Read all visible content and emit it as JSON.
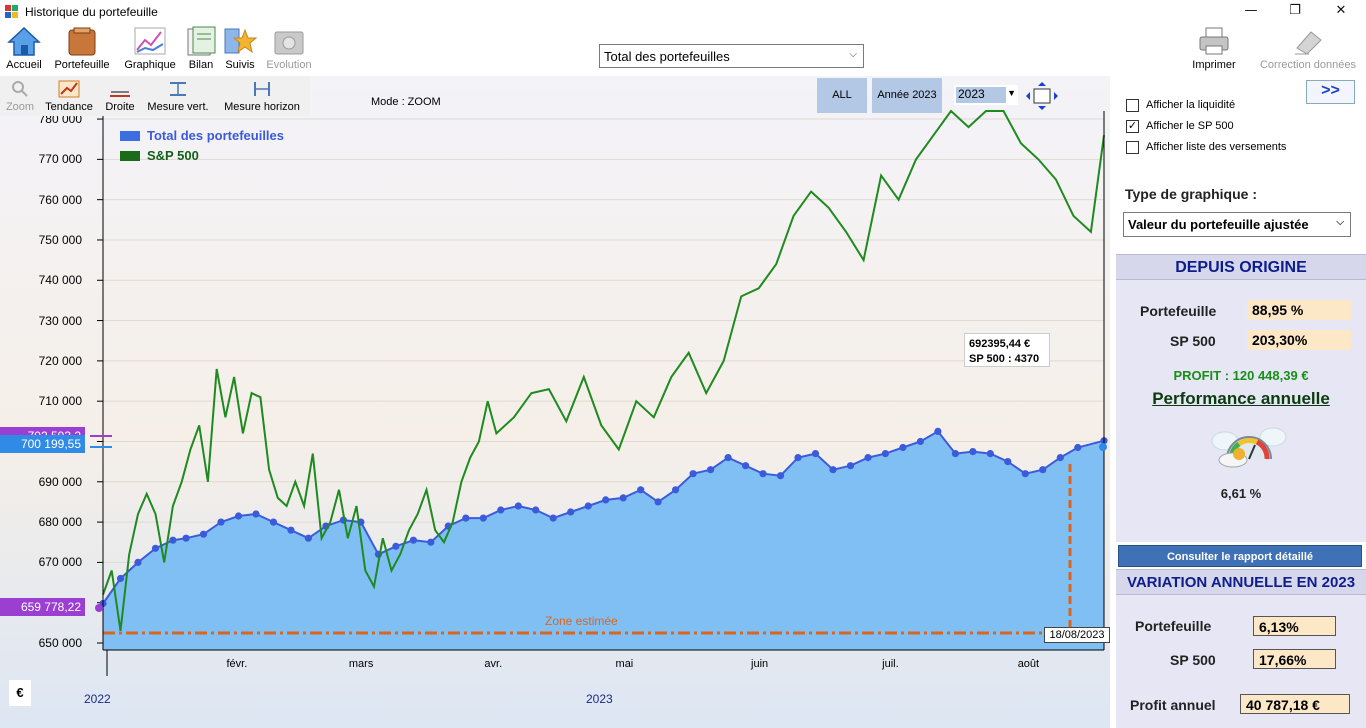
{
  "window": {
    "title": "Historique du portefeuille"
  },
  "toolbar": {
    "accueil": "Accueil",
    "portefeuille": "Portefeuille",
    "graphique": "Graphique",
    "bilan": "Bilan",
    "suivis": "Suivis",
    "evolution": "Evolution",
    "imprimer": "Imprimer",
    "correction": "Correction données",
    "portfolio_select": "Total des portefeuilles"
  },
  "subtoolbar": {
    "zoom": "Zoom",
    "tendance": "Tendance",
    "droite": "Droite",
    "mesure_vert": "Mesure vert.",
    "mesure_horizon": "Mesure horizon"
  },
  "chart_controls": {
    "mode": "Mode : ZOOM",
    "all": "ALL",
    "annee": "Année 2023",
    "year_value": "2023",
    "currency": "€",
    "tooltip_value": "692395,44 €",
    "tooltip_sp": "SP 500 : 4370",
    "zone_estimee": "Zone estimée",
    "date_badge": "18/08/2023",
    "tag_high": "702 593,2",
    "tag_current": "700 199,55",
    "tag_low": "659 778,22"
  },
  "chart_data": {
    "type": "area",
    "x_range": [
      "2023-01-01",
      "2023-08-18"
    ],
    "ylim": [
      650000,
      782000
    ],
    "y_ticks": [
      "650 000",
      "660 000",
      "670 000",
      "680 000",
      "690 000",
      "700 000",
      "710 000",
      "720 000",
      "730 000",
      "740 000",
      "750 000",
      "760 000",
      "770 000",
      "780 000"
    ],
    "x_ticks": [
      "févr.",
      "mars",
      "avr.",
      "mai",
      "juin",
      "juil.",
      "août"
    ],
    "x_year_labels": [
      "2022",
      "2023"
    ],
    "legend_placement": "top-left",
    "series": [
      {
        "name": "Total des portefeuilles",
        "style": "area with markers",
        "x": [
          "2023-01-01",
          "2023-01-05",
          "2023-01-09",
          "2023-01-13",
          "2023-01-17",
          "2023-01-20",
          "2023-01-24",
          "2023-01-28",
          "2023-02-01",
          "2023-02-05",
          "2023-02-09",
          "2023-02-13",
          "2023-02-17",
          "2023-02-21",
          "2023-02-25",
          "2023-03-01",
          "2023-03-05",
          "2023-03-09",
          "2023-03-13",
          "2023-03-17",
          "2023-03-21",
          "2023-03-25",
          "2023-03-29",
          "2023-04-02",
          "2023-04-06",
          "2023-04-10",
          "2023-04-14",
          "2023-04-18",
          "2023-04-22",
          "2023-04-26",
          "2023-04-30",
          "2023-05-04",
          "2023-05-08",
          "2023-05-12",
          "2023-05-16",
          "2023-05-20",
          "2023-05-24",
          "2023-05-28",
          "2023-06-01",
          "2023-06-05",
          "2023-06-09",
          "2023-06-13",
          "2023-06-17",
          "2023-06-21",
          "2023-06-25",
          "2023-06-29",
          "2023-07-03",
          "2023-07-07",
          "2023-07-11",
          "2023-07-15",
          "2023-07-19",
          "2023-07-23",
          "2023-07-27",
          "2023-07-31",
          "2023-08-04",
          "2023-08-08",
          "2023-08-12",
          "2023-08-18"
        ],
        "values": [
          659800,
          666000,
          670000,
          673500,
          675500,
          676000,
          677000,
          680000,
          681500,
          682000,
          680000,
          678000,
          676000,
          679000,
          680500,
          680000,
          672000,
          674000,
          675500,
          675000,
          679000,
          681000,
          681000,
          683000,
          684000,
          683000,
          681000,
          682500,
          684000,
          685500,
          686000,
          688000,
          685000,
          688000,
          692000,
          693000,
          696000,
          694000,
          692000,
          691500,
          696000,
          697000,
          693000,
          694000,
          696000,
          697000,
          698500,
          700000,
          702500,
          697000,
          697500,
          697000,
          695000,
          692000,
          693000,
          696000,
          698500,
          700200
        ]
      },
      {
        "name": "S&P 500",
        "style": "line",
        "x": [
          "2023-01-01",
          "2023-01-03",
          "2023-01-05",
          "2023-01-07",
          "2023-01-09",
          "2023-01-11",
          "2023-01-13",
          "2023-01-15",
          "2023-01-17",
          "2023-01-19",
          "2023-01-21",
          "2023-01-23",
          "2023-01-25",
          "2023-01-27",
          "2023-01-29",
          "2023-01-31",
          "2023-02-02",
          "2023-02-04",
          "2023-02-06",
          "2023-02-08",
          "2023-02-10",
          "2023-02-12",
          "2023-02-14",
          "2023-02-16",
          "2023-02-18",
          "2023-02-20",
          "2023-02-22",
          "2023-02-24",
          "2023-02-26",
          "2023-02-28",
          "2023-03-02",
          "2023-03-04",
          "2023-03-06",
          "2023-03-08",
          "2023-03-10",
          "2023-03-12",
          "2023-03-14",
          "2023-03-16",
          "2023-03-18",
          "2023-03-20",
          "2023-03-22",
          "2023-03-24",
          "2023-03-26",
          "2023-03-28",
          "2023-03-30",
          "2023-04-01",
          "2023-04-05",
          "2023-04-09",
          "2023-04-13",
          "2023-04-17",
          "2023-04-21",
          "2023-04-25",
          "2023-04-29",
          "2023-05-03",
          "2023-05-07",
          "2023-05-11",
          "2023-05-15",
          "2023-05-19",
          "2023-05-23",
          "2023-05-27",
          "2023-05-31",
          "2023-06-04",
          "2023-06-08",
          "2023-06-12",
          "2023-06-16",
          "2023-06-20",
          "2023-06-24",
          "2023-06-28",
          "2023-07-02",
          "2023-07-06",
          "2023-07-10",
          "2023-07-14",
          "2023-07-18",
          "2023-07-22",
          "2023-07-26",
          "2023-07-30",
          "2023-08-03",
          "2023-08-07",
          "2023-08-11",
          "2023-08-15",
          "2023-08-18"
        ],
        "values": [
          662000,
          668000,
          653000,
          672000,
          682000,
          687000,
          682000,
          670000,
          684000,
          690000,
          698000,
          704000,
          690000,
          718000,
          706000,
          716000,
          702000,
          712000,
          711000,
          693000,
          686000,
          684000,
          690000,
          684000,
          697000,
          676000,
          680000,
          688000,
          676000,
          684000,
          668000,
          664000,
          676000,
          668000,
          672000,
          678000,
          682000,
          688000,
          678000,
          675000,
          680000,
          690000,
          696000,
          700000,
          710000,
          702000,
          706000,
          712000,
          713000,
          705000,
          716000,
          704000,
          698000,
          710000,
          706000,
          716000,
          722000,
          712000,
          720000,
          736000,
          738000,
          744000,
          756000,
          762000,
          758000,
          752000,
          745000,
          766000,
          760000,
          770000,
          776000,
          782000,
          778000,
          788000,
          782000,
          774000,
          770000,
          765000,
          756000,
          752000,
          776000
        ]
      }
    ]
  },
  "right_panel": {
    "next_label": ">>",
    "checkbox_liquidite": "Afficher la liquidité",
    "checkbox_sp500": "Afficher le SP 500",
    "checkbox_versements": "Afficher liste des versements",
    "checked_liquidite": "",
    "checked_sp500": "✓",
    "checked_versements": "",
    "type_graphique_label": "Type de graphique :",
    "type_graphique_value": "Valeur du portefeuille ajustée",
    "depuis_origine": "DEPUIS ORIGINE",
    "portefeuille_label": "Portefeuille",
    "portefeuille_value": "88,95 %",
    "sp500_label": "SP 500",
    "sp500_value": "203,30%",
    "profit": "PROFIT : 120 448,39 €",
    "performance_title": "Performance annuelle",
    "performance_value": "6,61 %",
    "rapport_button": "Consulter le rapport détaillé",
    "variation_title": "VARIATION ANNUELLE EN 2023",
    "var_portefeuille_label": "Portefeuille",
    "var_portefeuille_value": "6,13%",
    "var_sp500_label": "SP 500",
    "var_sp500_value": "17,66%",
    "profit_annuel_label": "Profit annuel",
    "profit_annuel_value": "40 787,18 €"
  },
  "colors": {
    "portfolio_fill": "#80bff4",
    "portfolio_marker": "#3b5bdb",
    "sp500_line": "#1f8a1f",
    "estimate_line": "#d9661f",
    "tag_purple": "#9a3fd2",
    "tag_blue": "#2f8be6",
    "panel_head_text": "#0d1e8c"
  }
}
